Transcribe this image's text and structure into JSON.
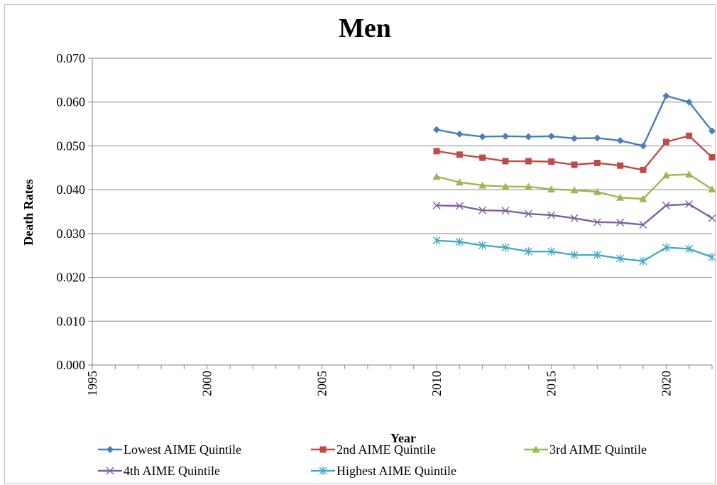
{
  "chart_data": {
    "type": "line",
    "title": "Men",
    "xlabel": "Year",
    "ylabel": "Death Rates",
    "xlim": [
      1995,
      2022
    ],
    "ylim": [
      0.0,
      0.07
    ],
    "x_ticks": [
      "1995",
      "2000",
      "2005",
      "2010",
      "2015",
      "2020"
    ],
    "y_ticks": [
      "0.000",
      "0.010",
      "0.020",
      "0.030",
      "0.040",
      "0.050",
      "0.060",
      "0.070"
    ],
    "grid": "horizontal",
    "legend_position": "bottom",
    "x": [
      2010,
      2011,
      2012,
      2013,
      2014,
      2015,
      2016,
      2017,
      2018,
      2019,
      2020,
      2021,
      2022
    ],
    "series": [
      {
        "name": "Lowest AIME Quintile",
        "color": "#4a7ebb",
        "marker": "diamond",
        "values": [
          0.0537,
          0.0527,
          0.0521,
          0.0522,
          0.0521,
          0.0522,
          0.0517,
          0.0518,
          0.0512,
          0.05,
          0.0614,
          0.06,
          0.0534
        ]
      },
      {
        "name": "2nd AIME Quintile",
        "color": "#be4b48",
        "marker": "square",
        "values": [
          0.0488,
          0.048,
          0.0473,
          0.0465,
          0.0465,
          0.0464,
          0.0457,
          0.0461,
          0.0455,
          0.0445,
          0.0509,
          0.0523,
          0.0474
        ]
      },
      {
        "name": "3rd AIME Quintile",
        "color": "#98b954",
        "marker": "triangle",
        "values": [
          0.043,
          0.0417,
          0.041,
          0.0407,
          0.0407,
          0.0401,
          0.0399,
          0.0395,
          0.0382,
          0.0379,
          0.0433,
          0.0435,
          0.0401
        ]
      },
      {
        "name": "4th AIME Quintile",
        "color": "#7d60a0",
        "marker": "x",
        "values": [
          0.0364,
          0.0363,
          0.0353,
          0.0352,
          0.0345,
          0.0342,
          0.0335,
          0.0326,
          0.0325,
          0.032,
          0.0364,
          0.0367,
          0.0335
        ]
      },
      {
        "name": "Highest AIME Quintile",
        "color": "#46aac5",
        "marker": "asterisk",
        "values": [
          0.0284,
          0.0281,
          0.0273,
          0.0268,
          0.0259,
          0.0259,
          0.0251,
          0.0251,
          0.0243,
          0.0237,
          0.0268,
          0.0265,
          0.0246
        ]
      }
    ]
  }
}
